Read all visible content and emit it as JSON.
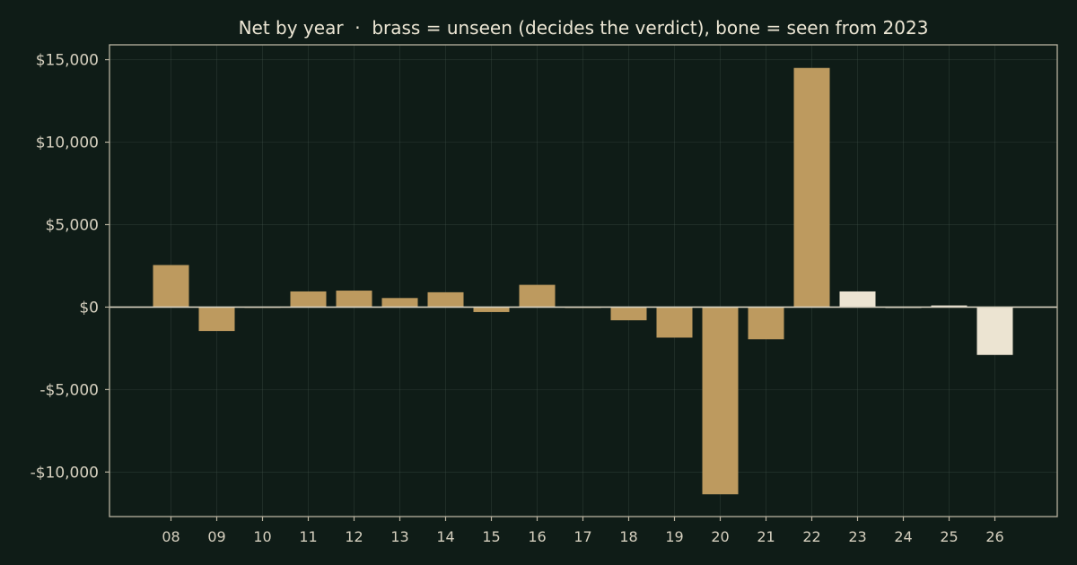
{
  "chart_data": {
    "type": "bar",
    "title": "Net by year  ·  brass = unseen (decides the verdict), bone = seen from 2023",
    "xlabel": "",
    "ylabel": "",
    "categories": [
      "08",
      "09",
      "10",
      "11",
      "12",
      "13",
      "14",
      "15",
      "16",
      "17",
      "18",
      "19",
      "20",
      "21",
      "22",
      "23",
      "24",
      "25",
      "26"
    ],
    "values": [
      2550,
      -1450,
      0,
      950,
      1000,
      550,
      900,
      -300,
      1350,
      -50,
      -800,
      -1850,
      -11350,
      -1950,
      14500,
      950,
      -50,
      100,
      -2900
    ],
    "groups": [
      "unseen",
      "unseen",
      "unseen",
      "unseen",
      "unseen",
      "unseen",
      "unseen",
      "unseen",
      "unseen",
      "unseen",
      "unseen",
      "unseen",
      "unseen",
      "unseen",
      "unseen",
      "seen",
      "seen",
      "seen",
      "seen"
    ],
    "colors": {
      "unseen": "#bd9a5f",
      "seen": "#ece4d2"
    },
    "ylim": [
      -12700,
      15900
    ],
    "yticks": [
      15000,
      10000,
      5000,
      0,
      -5000,
      -10000
    ],
    "ytick_labels": [
      "$15,000",
      "$10,000",
      "$5,000",
      "$0",
      "-$5,000",
      "-$10,000"
    ],
    "grid": true
  }
}
